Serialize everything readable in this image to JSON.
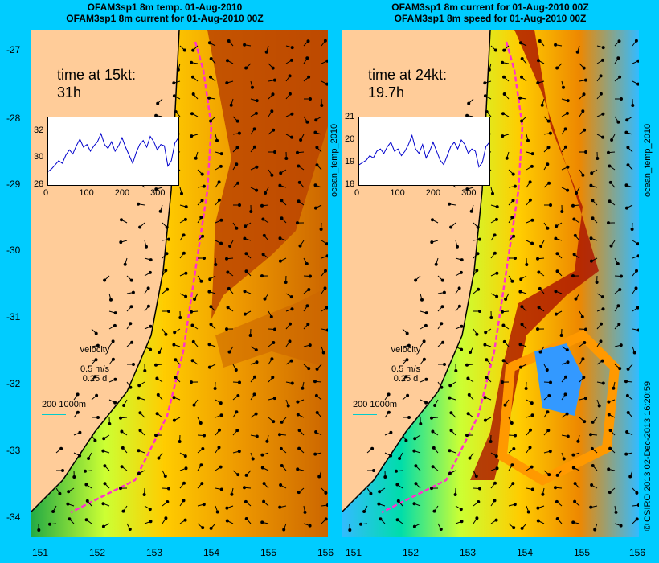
{
  "left_panel": {
    "title_line1": "OFAM3sp1 8m temp. 01-Aug-2010",
    "title_line2": "OFAM3sp1 8m current for 01-Aug-2010 00Z",
    "time_line1": "time at 15kt:",
    "time_line2": "31h",
    "inset_yticks": [
      "32",
      "30",
      "28"
    ],
    "inset_xticks": [
      "0",
      "100",
      "200",
      "300"
    ],
    "inset_series": [
      29.0,
      29.2,
      29.5,
      29.8,
      29.6,
      30.2,
      30.6,
      30.3,
      30.9,
      31.4,
      30.8,
      31.0,
      30.5,
      30.9,
      31.2,
      31.8,
      31.0,
      30.7,
      31.2,
      30.5,
      30.9,
      31.5,
      30.8,
      30.2,
      29.6,
      30.4,
      31.0,
      31.3,
      30.8,
      31.6,
      31.2,
      30.6,
      31.0,
      30.9,
      29.4,
      29.8,
      31.1,
      31.5
    ],
    "velocity_label": "velocity",
    "velocity_scale": "0.5 m/s",
    "velocity_time": "0.25 d",
    "depth_label": "200  1000m"
  },
  "right_panel": {
    "title_line1": "OFAM3sp1 8m current for 01-Aug-2010 00Z",
    "title_line2": "OFAM3sp1 8m speed for 01-Aug-2010 00Z",
    "time_line1": "time at 24kt:",
    "time_line2": "19.7h",
    "inset_yticks": [
      "21",
      "20",
      "19",
      "18"
    ],
    "inset_xticks": [
      "0",
      "100",
      "200",
      "300"
    ],
    "inset_series": [
      18.9,
      19.0,
      19.1,
      19.3,
      19.2,
      19.5,
      19.6,
      19.4,
      19.7,
      19.9,
      19.5,
      19.6,
      19.3,
      19.5,
      19.8,
      20.2,
      19.6,
      19.4,
      19.8,
      19.2,
      19.5,
      19.9,
      19.5,
      19.1,
      18.9,
      19.3,
      19.7,
      19.9,
      19.6,
      20.0,
      19.8,
      19.4,
      19.6,
      19.5,
      18.8,
      19.0,
      19.7,
      19.9
    ],
    "velocity_label": "velocity",
    "velocity_scale": "0.5 m/s",
    "velocity_time": "0.25 d",
    "depth_label": "200  1000m"
  },
  "axes": {
    "lat_ticks": [
      "-27",
      "-28",
      "-29",
      "-30",
      "-31",
      "-32",
      "-33",
      "-34"
    ],
    "lon_ticks_left": [
      "151",
      "152",
      "153",
      "154",
      "155",
      "156"
    ],
    "lon_ticks_right": [
      "151",
      "152",
      "153",
      "154",
      "155",
      "156"
    ]
  },
  "side_labels": {
    "left": "ocean_temp_2010",
    "right": "ocean_temp_2010"
  },
  "credit": "© CSIRO 2013   02-Dec-2013 16:20:59"
}
